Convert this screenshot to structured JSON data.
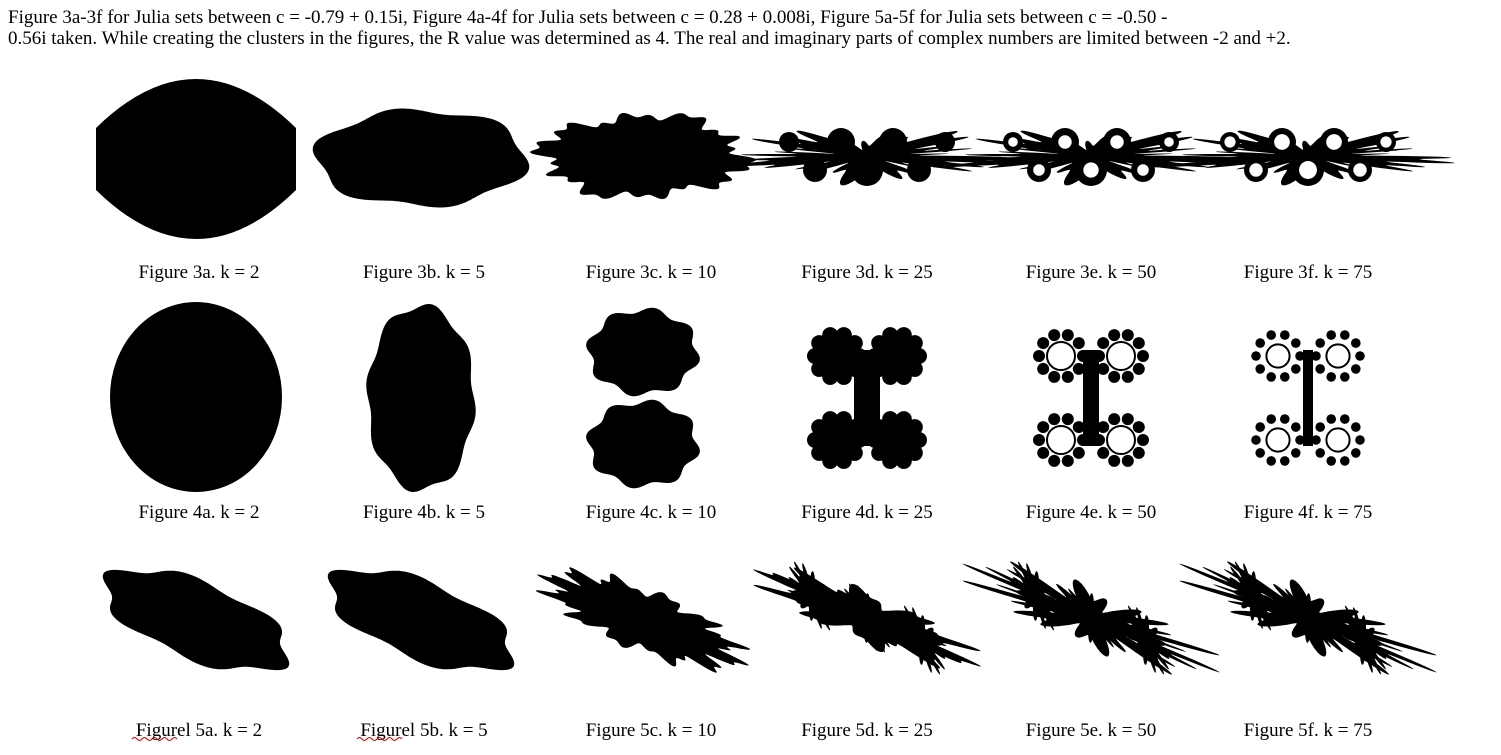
{
  "caption_lines": [
    "Figure 3a-3f for Julia sets between c = -0.79 + 0.15i, Figure 4a-4f for Julia sets between c = 0.28 + 0.008i, Figure 5a-5f for Julia sets between c = -0.50 -",
    "0.56i taken. While creating the clusters in the figures, the R value was determined as 4. The real and imaginary parts of complex numbers are limited between -2 and +2."
  ],
  "figures": [
    [
      "Figure 3a. k = 2",
      "Figure 3b. k = 5",
      "Figure 3c. k = 10",
      "Figure 3d. k = 25",
      "Figure 3e. k = 50",
      "Figure 3f. k = 75"
    ],
    [
      "Figure 4a. k = 2",
      "Figure 4b. k = 5",
      "Figure 4c. k = 10",
      "Figure 4d. k = 25",
      "Figure 4e. k = 50",
      "Figure 4f. k = 75"
    ],
    [
      "Figurel 5a. k = 2",
      "Figurel 5b. k = 5",
      "Figure 5c. k = 10",
      "Figure 5d. k = 25",
      "Figure 5e. k = 50",
      "Figure 5f. k = 75"
    ]
  ]
}
